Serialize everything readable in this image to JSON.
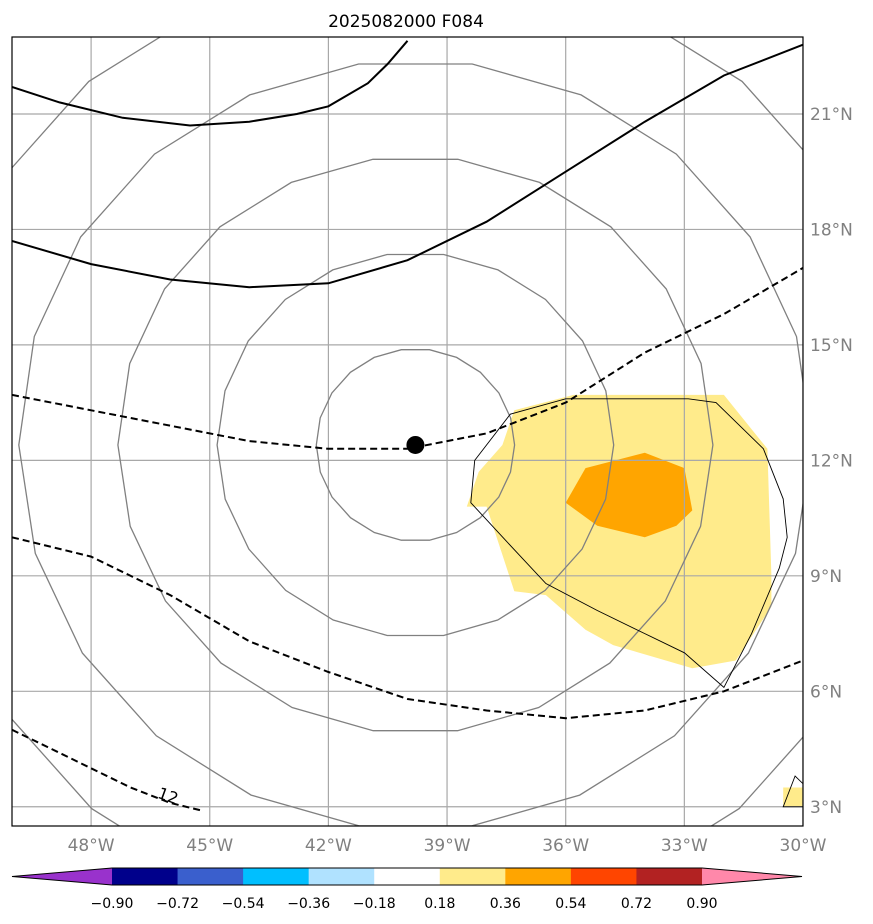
{
  "chart_data": {
    "type": "contour-map",
    "title": "2025082000 F084",
    "xlim": [
      -50,
      -30
    ],
    "ylim": [
      2.5,
      23
    ],
    "x_ticks": [
      -48,
      -45,
      -42,
      -39,
      -36,
      -33,
      -30
    ],
    "x_tick_labels": [
      "48°W",
      "45°W",
      "42°W",
      "39°W",
      "36°W",
      "33°W",
      "30°W"
    ],
    "y_ticks": [
      3,
      6,
      9,
      12,
      15,
      18,
      21
    ],
    "y_tick_labels": [
      "3°N",
      "6°N",
      "9°N",
      "12°N",
      "15°N",
      "18°N",
      "21°N"
    ],
    "grid": true,
    "center_marker": {
      "lon": -39.8,
      "lat": 12.4
    },
    "range_rings_center": {
      "lon": -39.8,
      "lat": 12.4
    },
    "contour_label": "12",
    "colorbar": {
      "ticks": [
        "−0.90",
        "−0.72",
        "−0.54",
        "−0.36",
        "−0.18",
        "0.18",
        "0.36",
        "0.54",
        "0.72",
        "0.90"
      ],
      "colors": [
        "#9932cc",
        "#00008b",
        "#3a5fcd",
        "#00bfff",
        "#b0e2ff",
        "#ffffff",
        "#ffeb8b",
        "#ffa500",
        "#ff4500",
        "#b22222",
        "#ff88aa"
      ],
      "extend": "both"
    },
    "shaded_regions": [
      {
        "level": "0.18–0.36",
        "color": "#ffeb8b",
        "points": [
          [
            -37.3,
            13.3
          ],
          [
            -35.8,
            13.7
          ],
          [
            -34,
            13.7
          ],
          [
            -32,
            13.7
          ],
          [
            -30.9,
            12.3
          ],
          [
            -30.8,
            9
          ],
          [
            -30.8,
            8.2
          ],
          [
            -31.7,
            6.8
          ],
          [
            -32.8,
            6.6
          ],
          [
            -34.8,
            7.2
          ],
          [
            -35.5,
            7.6
          ],
          [
            -36.5,
            8.5
          ],
          [
            -37.3,
            8.6
          ],
          [
            -38,
            10.8
          ],
          [
            -38.5,
            10.8
          ],
          [
            -38.2,
            11.7
          ],
          [
            -37.6,
            12.4
          ]
        ]
      },
      {
        "level": "0.36–0.54",
        "color": "#ffa500",
        "points": [
          [
            -35.5,
            11.8
          ],
          [
            -34,
            12.2
          ],
          [
            -33,
            11.8
          ],
          [
            -32.8,
            10.7
          ],
          [
            -33.2,
            10.3
          ],
          [
            -34,
            10
          ],
          [
            -35.2,
            10.3
          ],
          [
            -36,
            10.9
          ]
        ]
      },
      {
        "level": "0.18–0.36",
        "color": "#ffeb8b",
        "points": [
          [
            -30.5,
            3.5
          ],
          [
            -30,
            3.5
          ],
          [
            -30,
            3
          ],
          [
            -30.5,
            3
          ]
        ]
      }
    ],
    "solid_contours": [
      [
        [
          -50,
          21.7
        ],
        [
          -48.8,
          21.3
        ],
        [
          -47.2,
          20.9
        ],
        [
          -45.5,
          20.7
        ],
        [
          -44,
          20.8
        ],
        [
          -42.8,
          21
        ],
        [
          -42,
          21.2
        ],
        [
          -41,
          21.8
        ],
        [
          -40.5,
          22.3
        ],
        [
          -40,
          22.9
        ]
      ],
      [
        [
          -50,
          17.7
        ],
        [
          -48,
          17.1
        ],
        [
          -46,
          16.7
        ],
        [
          -44,
          16.5
        ],
        [
          -42,
          16.6
        ],
        [
          -40,
          17.2
        ],
        [
          -38,
          18.2
        ],
        [
          -36,
          19.5
        ],
        [
          -34,
          20.8
        ],
        [
          -32,
          22
        ],
        [
          -30,
          22.8
        ]
      ]
    ],
    "dashed_contours": [
      [
        [
          -50,
          13.7
        ],
        [
          -48,
          13.3
        ],
        [
          -46,
          12.9
        ],
        [
          -44,
          12.5
        ],
        [
          -42,
          12.3
        ],
        [
          -40,
          12.3
        ],
        [
          -38,
          12.7
        ],
        [
          -36,
          13.5
        ],
        [
          -34,
          14.8
        ],
        [
          -32,
          15.8
        ],
        [
          -30,
          17
        ]
      ],
      [
        [
          -50,
          10
        ],
        [
          -48,
          9.5
        ],
        [
          -46,
          8.5
        ],
        [
          -44,
          7.3
        ],
        [
          -42,
          6.5
        ],
        [
          -40,
          5.8
        ],
        [
          -38,
          5.5
        ],
        [
          -36,
          5.3
        ],
        [
          -34,
          5.5
        ],
        [
          -32,
          6
        ],
        [
          -30,
          6.8
        ]
      ],
      [
        [
          -50,
          5
        ],
        [
          -49,
          4.5
        ],
        [
          -48,
          4
        ],
        [
          -47,
          3.5
        ],
        [
          -46,
          3.1
        ],
        [
          -45.2,
          2.9
        ]
      ]
    ],
    "outline_polygons": [
      [
        [
          -38.3,
          12
        ],
        [
          -37.4,
          13.2
        ],
        [
          -36,
          13.6
        ],
        [
          -32.9,
          13.6
        ],
        [
          -32.2,
          13.5
        ],
        [
          -31,
          12.3
        ],
        [
          -30.5,
          11
        ],
        [
          -30.4,
          10
        ],
        [
          -30.6,
          9.2
        ],
        [
          -31.3,
          7.5
        ],
        [
          -32,
          6.1
        ],
        [
          -33,
          7
        ],
        [
          -34,
          7.5
        ],
        [
          -35.2,
          8.1
        ],
        [
          -36.5,
          8.8
        ],
        [
          -37.5,
          9.9
        ],
        [
          -38.4,
          10.9
        ]
      ],
      [
        [
          -30.5,
          3
        ],
        [
          -30.2,
          3.8
        ],
        [
          -30,
          3.6
        ],
        [
          -30,
          3
        ]
      ]
    ]
  }
}
